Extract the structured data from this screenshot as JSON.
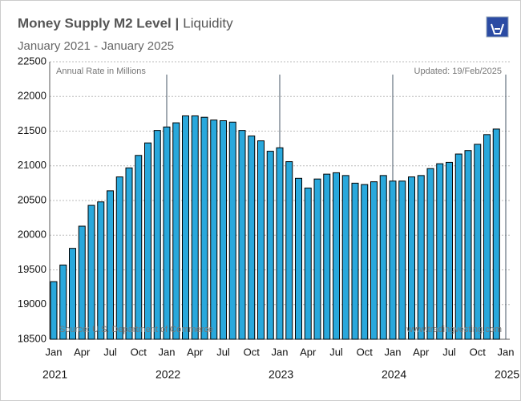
{
  "chart_data": {
    "type": "bar",
    "title": "Money Supply M2 Level |",
    "title_suffix": "Liquidity",
    "subtitle": "January 2021 - January 2025",
    "annotations": {
      "unit": "Annual Rate in Millions",
      "updated": "Updated: 19/Feb/2025",
      "source": "Source: U.S. Department of Commerce",
      "site": "www.tradingvesting.com"
    },
    "categories": [
      "Jan",
      null,
      null,
      "Apr",
      null,
      null,
      "Jul",
      null,
      null,
      "Oct",
      null,
      null,
      "Jan",
      null,
      null,
      "Apr",
      null,
      null,
      "Jul",
      null,
      null,
      "Oct",
      null,
      null,
      "Jan",
      null,
      null,
      "Apr",
      null,
      null,
      "Jul",
      null,
      null,
      "Oct",
      null,
      null,
      "Jan",
      null,
      null,
      "Apr",
      null,
      null,
      "Jul",
      null,
      null,
      "Oct",
      null,
      null,
      "Jan"
    ],
    "years": [
      "2021",
      "2022",
      "2023",
      "2024",
      "2025"
    ],
    "values": [
      19330,
      19570,
      19810,
      20130,
      20430,
      20480,
      20640,
      20840,
      20970,
      21150,
      21330,
      21510,
      21560,
      21620,
      21720,
      21720,
      21700,
      21660,
      21650,
      21630,
      21510,
      21430,
      21360,
      21210,
      21260,
      21060,
      20820,
      20680,
      20810,
      20880,
      20900,
      20860,
      20750,
      20730,
      20770,
      20860,
      20780,
      20780,
      20840,
      20860,
      20960,
      21030,
      21050,
      21170,
      21220,
      21310,
      21450,
      21530,
      null
    ],
    "color": "#29a8dc",
    "ylim": [
      18500,
      22500
    ],
    "yticks": [
      18500,
      19000,
      19500,
      20000,
      20500,
      21000,
      21500,
      22000,
      22500
    ],
    "grid": true
  }
}
